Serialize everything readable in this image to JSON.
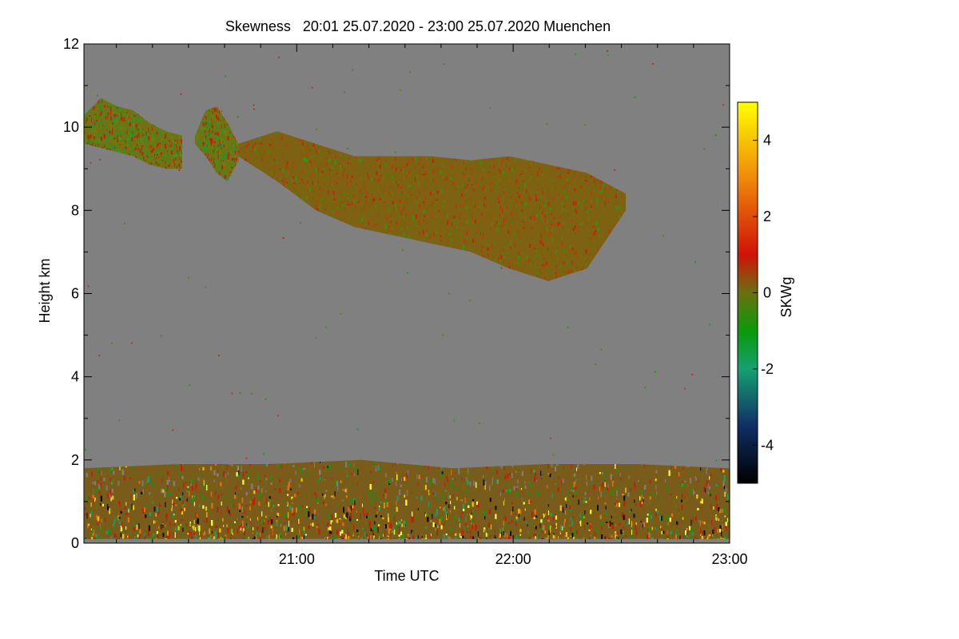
{
  "chart_data": {
    "type": "heatmap",
    "title": "Skewness   20:01 25.07.2020 - 23:00 25.07.2020 Muenchen",
    "xlabel": "Time UTC",
    "ylabel": "Height km",
    "x_range_hours": [
      20.0167,
      23.0
    ],
    "y_range_km": [
      0,
      12
    ],
    "x_ticks": [
      {
        "hour": 21,
        "label": "21:00"
      },
      {
        "hour": 22,
        "label": "22:00"
      },
      {
        "hour": 23,
        "label": "23:00"
      }
    ],
    "y_ticks": [
      {
        "value": 0,
        "label": "0"
      },
      {
        "value": 2,
        "label": "2"
      },
      {
        "value": 4,
        "label": "4"
      },
      {
        "value": 6,
        "label": "6"
      },
      {
        "value": 8,
        "label": "8"
      },
      {
        "value": 10,
        "label": "10"
      },
      {
        "value": 12,
        "label": "12"
      }
    ],
    "colorbar": {
      "label": "SKWg",
      "range": [
        -5,
        5
      ],
      "ticks": [
        {
          "value": 4,
          "label": "4"
        },
        {
          "value": 2,
          "label": "2"
        },
        {
          "value": 0,
          "label": "0"
        },
        {
          "value": -2,
          "label": "-2"
        },
        {
          "value": -4,
          "label": "-4"
        }
      ],
      "color_stops": [
        {
          "value": -5,
          "color": "#000000"
        },
        {
          "value": -3.5,
          "color": "#102e66"
        },
        {
          "value": -2,
          "color": "#16a070"
        },
        {
          "value": -1,
          "color": "#0a9a0a"
        },
        {
          "value": 0,
          "color": "#6a7010"
        },
        {
          "value": 1,
          "color": "#d01208"
        },
        {
          "value": 3,
          "color": "#f0880a"
        },
        {
          "value": 5,
          "color": "#ffff00"
        }
      ]
    },
    "background_color": "#808080",
    "regions": [
      {
        "name": "cirrus-patch-1",
        "time_start": 20.02,
        "time_end": 20.47,
        "top_km": [
          10.3,
          10.7,
          10.5,
          10.4,
          10.1,
          9.9,
          9.8
        ],
        "bottom_km": [
          9.6,
          9.5,
          9.4,
          9.3,
          9.1,
          9.0,
          9.0
        ],
        "dominant": "olive-green-red"
      },
      {
        "name": "cirrus-patch-2",
        "time_start": 20.53,
        "time_end": 20.73,
        "top_km": [
          9.8,
          10.4,
          10.5,
          10.1,
          9.6
        ],
        "bottom_km": [
          9.6,
          9.3,
          8.9,
          8.7,
          9.2
        ],
        "dominant": "olive-green-red"
      },
      {
        "name": "cirrus-main",
        "time_start": 20.73,
        "time_end": 22.52,
        "top_km": [
          9.6,
          9.9,
          9.6,
          9.3,
          9.3,
          9.3,
          9.2,
          9.3,
          9.1,
          8.9,
          8.4
        ],
        "bottom_km": [
          9.3,
          8.7,
          8.0,
          7.6,
          7.4,
          7.2,
          7.0,
          6.6,
          6.3,
          6.6,
          8.0
        ],
        "dominant": "olive-red"
      },
      {
        "name": "boundary-layer",
        "time_start": 20.02,
        "time_end": 23.0,
        "top_km": [
          1.8,
          1.9,
          1.9,
          2.0,
          1.8,
          1.9,
          1.9,
          1.8
        ],
        "bottom_km": [
          0.1,
          0.1,
          0.1,
          0.1,
          0.1,
          0.1,
          0.1,
          0.1
        ],
        "dominant": "mixed yellow-red-green-black"
      }
    ]
  }
}
